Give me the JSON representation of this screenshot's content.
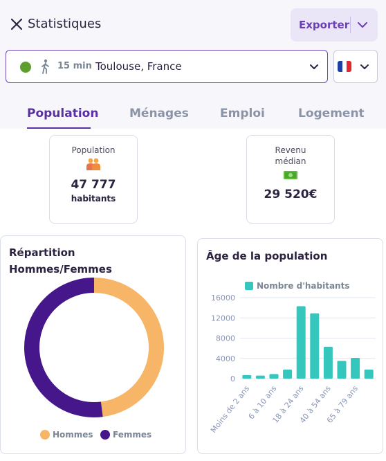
{
  "header": {
    "title": "Statistiques",
    "export_label": "Exporter"
  },
  "location": {
    "status_color": "#5d9e2f",
    "mode_icon": "walking-person-icon",
    "time": "15 min",
    "city": "Toulouse, France"
  },
  "language": {
    "flag": "france-flag-icon"
  },
  "tabs": [
    {
      "label": "Population",
      "active": true
    },
    {
      "label": "Ménages",
      "active": false
    },
    {
      "label": "Emploi",
      "active": false
    },
    {
      "label": "Logement",
      "active": false
    }
  ],
  "stats": {
    "population": {
      "label": "Population",
      "icon": "people-icon",
      "value": "47 777",
      "unit": "habitants"
    },
    "income": {
      "label_line1": "Revenu",
      "label_line2": "médian",
      "icon": "money-icon",
      "value": "29 520€"
    }
  },
  "colors": {
    "accent": "#5a2fa0",
    "hommes": "#f6b567",
    "femmes": "#45178a",
    "bars": "#35c7bd"
  },
  "chart_data": [
    {
      "type": "pie",
      "title_line1": "Répartition",
      "title_line2": "Hommes/Femmes",
      "labels": [
        "Hommes",
        "Femmes"
      ],
      "values": [
        48,
        52
      ],
      "colors": [
        "#f6b567",
        "#45178a"
      ],
      "legend": "bottom"
    },
    {
      "type": "bar",
      "title": "Âge de la population",
      "series": [
        {
          "name": "Nombre d'habitants",
          "color": "#35c7bd",
          "values": [
            700,
            600,
            900,
            1800,
            14300,
            12900,
            6300,
            3500,
            4100,
            1800
          ]
        }
      ],
      "categories": [
        "Moins de 2 ans",
        "",
        "6 à 10 ans",
        "",
        "18 à 24 ans",
        "",
        "40 à 54 ans",
        "",
        "65 à 79 ans",
        ""
      ],
      "yticks": [
        "16000",
        "12000",
        "8000",
        "4000",
        "0"
      ],
      "ylim": [
        0,
        16000
      ],
      "grid": true,
      "legend": "top"
    }
  ]
}
